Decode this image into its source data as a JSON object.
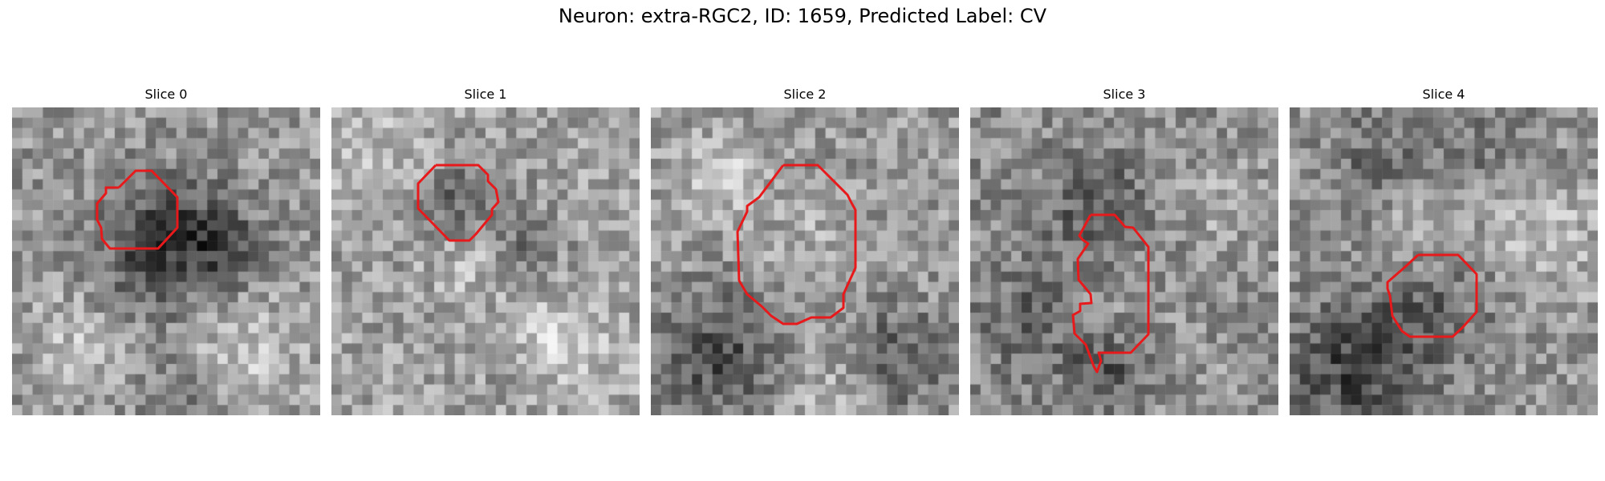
{
  "figure": {
    "title": "Neuron: extra-RGC2, ID: 1659, Predicted Label: CV"
  },
  "panels": [
    {
      "label": "Slice 0"
    },
    {
      "label": "Slice 1"
    },
    {
      "label": "Slice 2"
    },
    {
      "label": "Slice 3"
    },
    {
      "label": "Slice 4"
    }
  ],
  "colors": {
    "contour": "#e8191b",
    "background": "#ffffff"
  }
}
